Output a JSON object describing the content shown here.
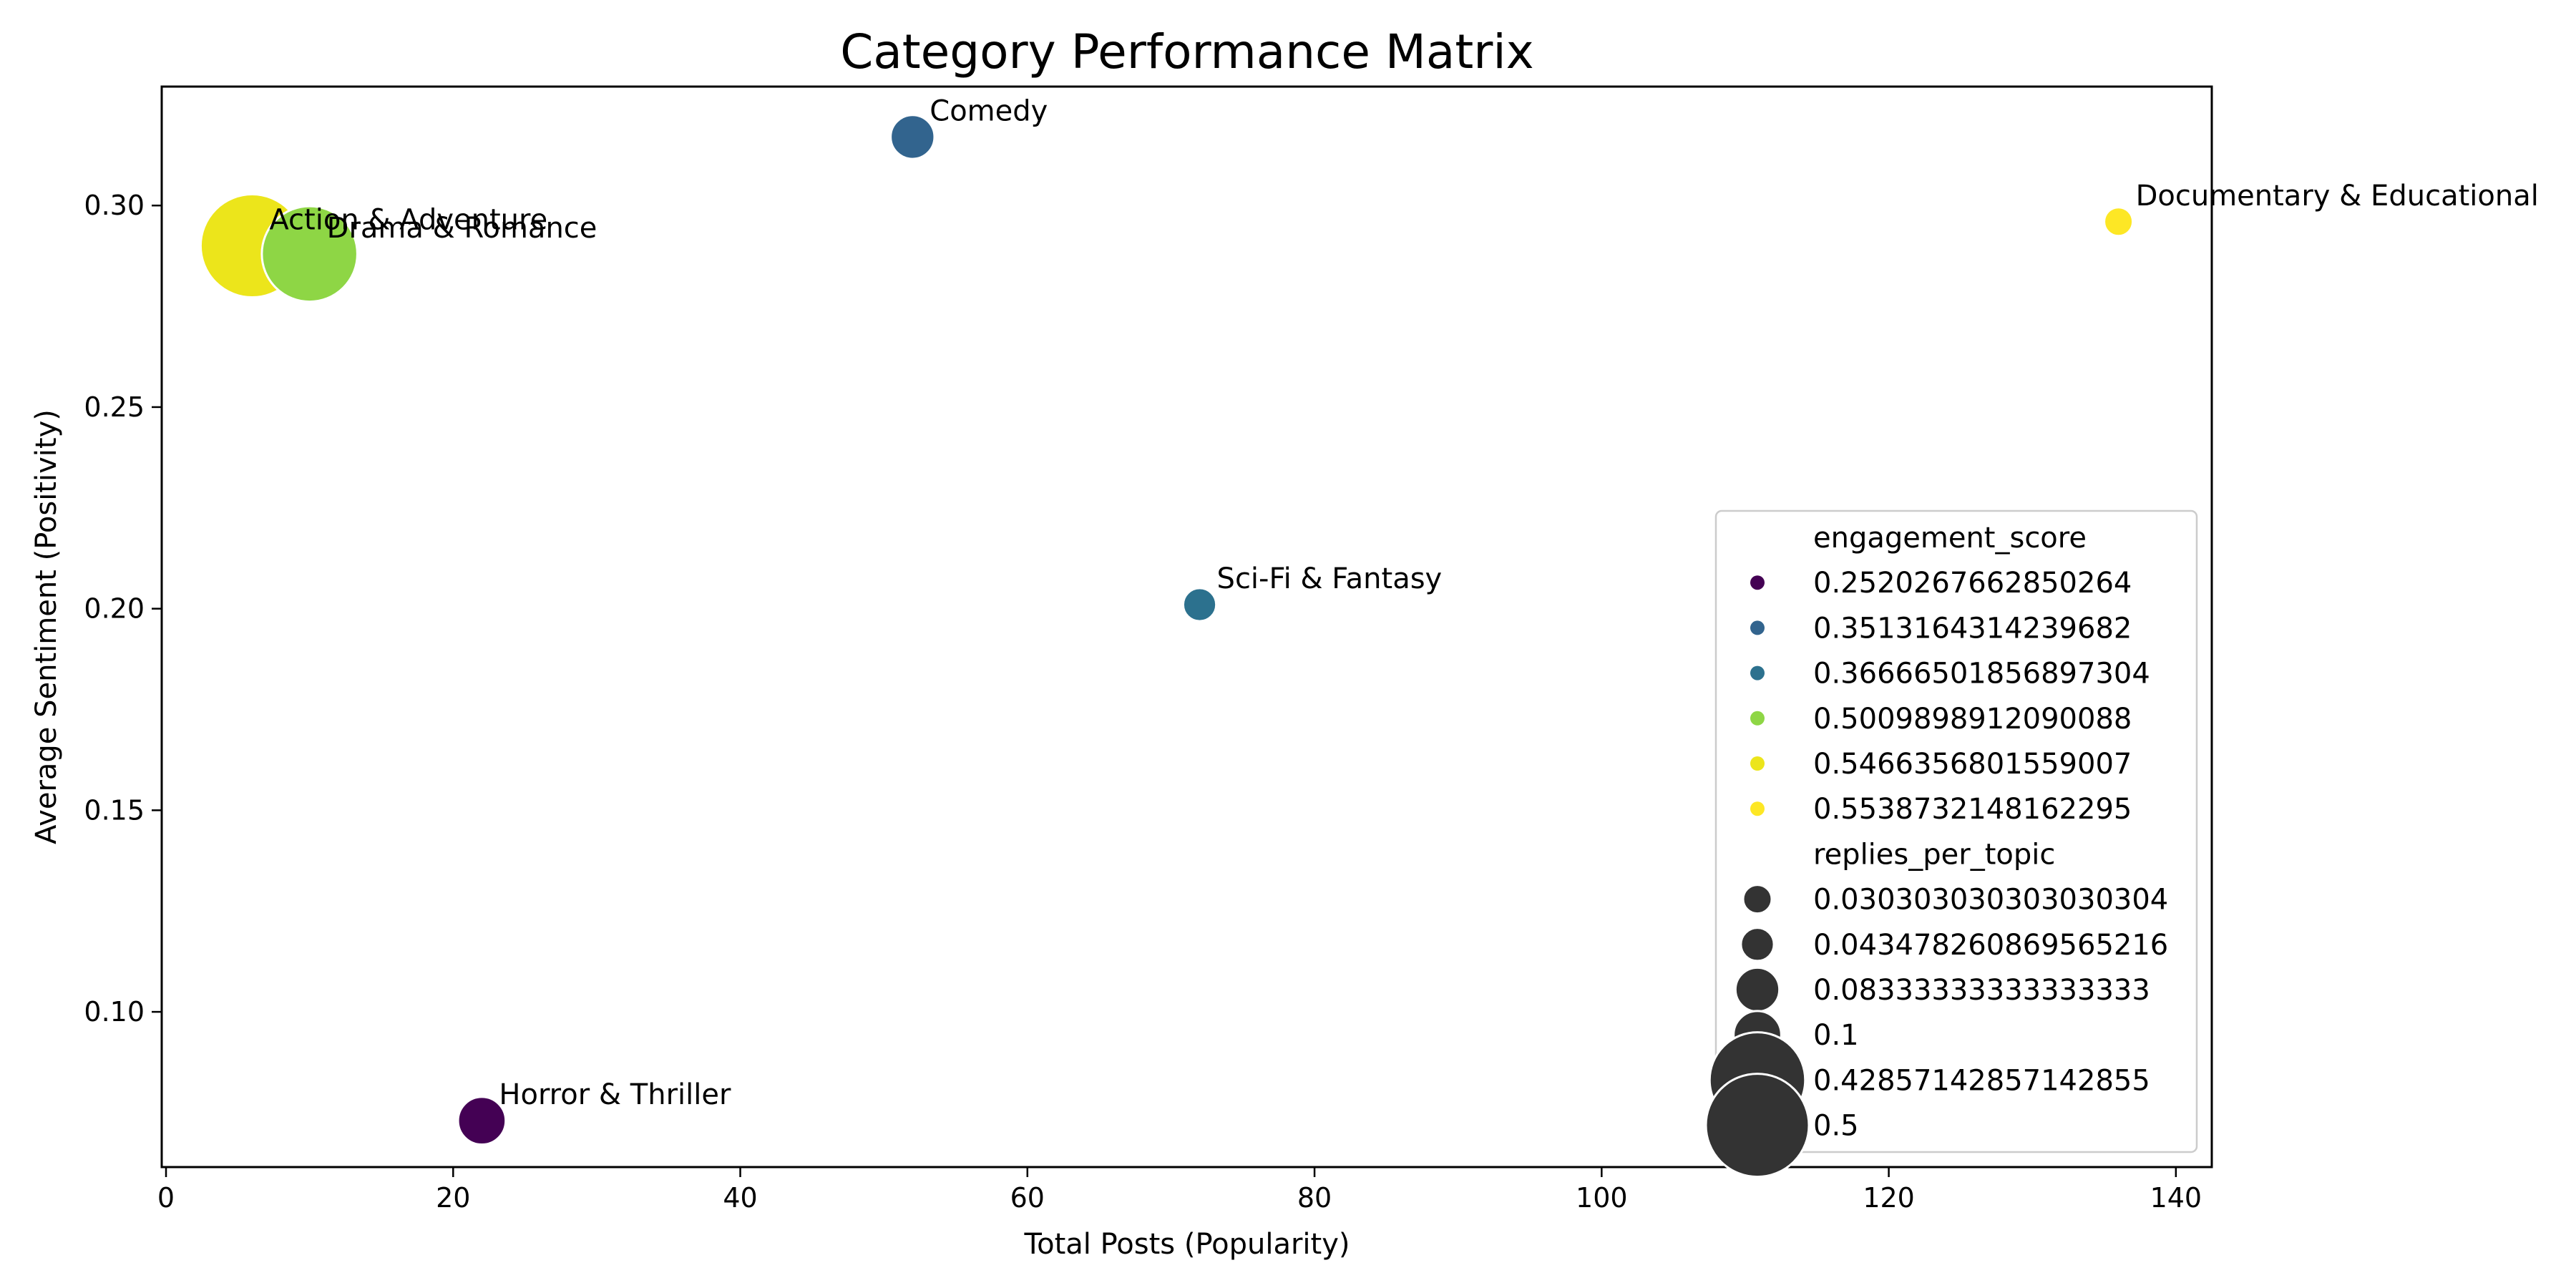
{
  "chart_data": {
    "type": "scatter",
    "title": "Category Performance Matrix",
    "xlabel": "Total Posts (Popularity)",
    "ylabel": "Average Sentiment (Positivity)",
    "xlim": [
      -0.3,
      142.5
    ],
    "ylim": [
      0.0615,
      0.3295
    ],
    "xticks": [
      {
        "value": 0,
        "label": "0"
      },
      {
        "value": 20,
        "label": "20"
      },
      {
        "value": 40,
        "label": "40"
      },
      {
        "value": 60,
        "label": "60"
      },
      {
        "value": 80,
        "label": "80"
      },
      {
        "value": 100,
        "label": "100"
      },
      {
        "value": 120,
        "label": "120"
      },
      {
        "value": 140,
        "label": "140"
      }
    ],
    "yticks": [
      {
        "value": 0.1,
        "label": "0.10"
      },
      {
        "value": 0.15,
        "label": "0.15"
      },
      {
        "value": 0.2,
        "label": "0.20"
      },
      {
        "value": 0.25,
        "label": "0.25"
      },
      {
        "value": 0.3,
        "label": "0.30"
      }
    ],
    "grid": false,
    "legend_position": "lower-right",
    "hue_field": "engagement_score",
    "size_field": "replies_per_topic",
    "points": [
      {
        "label": "Action & Adventure",
        "x": 6,
        "y": 0.29,
        "engagement_score": 0.5466356801559007,
        "replies_per_topic": 0.5,
        "color": "#ece51b"
      },
      {
        "label": "Drama & Romance",
        "x": 10,
        "y": 0.288,
        "engagement_score": 0.5009898912090088,
        "replies_per_topic": 0.42857142857142855,
        "color": "#8ed645"
      },
      {
        "label": "Comedy",
        "x": 52,
        "y": 0.317,
        "engagement_score": 0.3513164314239682,
        "replies_per_topic": 0.08333333333333333,
        "color": "#32648e"
      },
      {
        "label": "Documentary & Educational",
        "x": 136,
        "y": 0.296,
        "engagement_score": 0.5538732148162295,
        "replies_per_topic": 0.030303030303030304,
        "color": "#fde725"
      },
      {
        "label": "Sci-Fi & Fantasy",
        "x": 72,
        "y": 0.201,
        "engagement_score": 0.36666501856897304,
        "replies_per_topic": 0.043478260869565216,
        "color": "#2c718e"
      },
      {
        "label": "Horror & Thriller",
        "x": 22,
        "y": 0.073,
        "engagement_score": 0.2520267662850264,
        "replies_per_topic": 0.1,
        "color": "#440154"
      }
    ],
    "legend": {
      "hue_title": "engagement_score",
      "hue_entries": [
        {
          "label": "0.2520267662850264",
          "color": "#440154"
        },
        {
          "label": "0.3513164314239682",
          "color": "#32648e"
        },
        {
          "label": "0.36666501856897304",
          "color": "#2c718e"
        },
        {
          "label": "0.5009898912090088",
          "color": "#8ed645"
        },
        {
          "label": "0.5466356801559007",
          "color": "#ece51b"
        },
        {
          "label": "0.5538732148162295",
          "color": "#fde725"
        }
      ],
      "size_title": "replies_per_topic",
      "size_entries": [
        {
          "label": "0.030303030303030304",
          "value": 0.030303030303030304
        },
        {
          "label": "0.043478260869565216",
          "value": 0.043478260869565216
        },
        {
          "label": "0.08333333333333333",
          "value": 0.08333333333333333
        },
        {
          "label": "0.1",
          "value": 0.1
        },
        {
          "label": "0.42857142857142855",
          "value": 0.42857142857142855
        },
        {
          "label": "0.5",
          "value": 0.5
        }
      ]
    }
  }
}
